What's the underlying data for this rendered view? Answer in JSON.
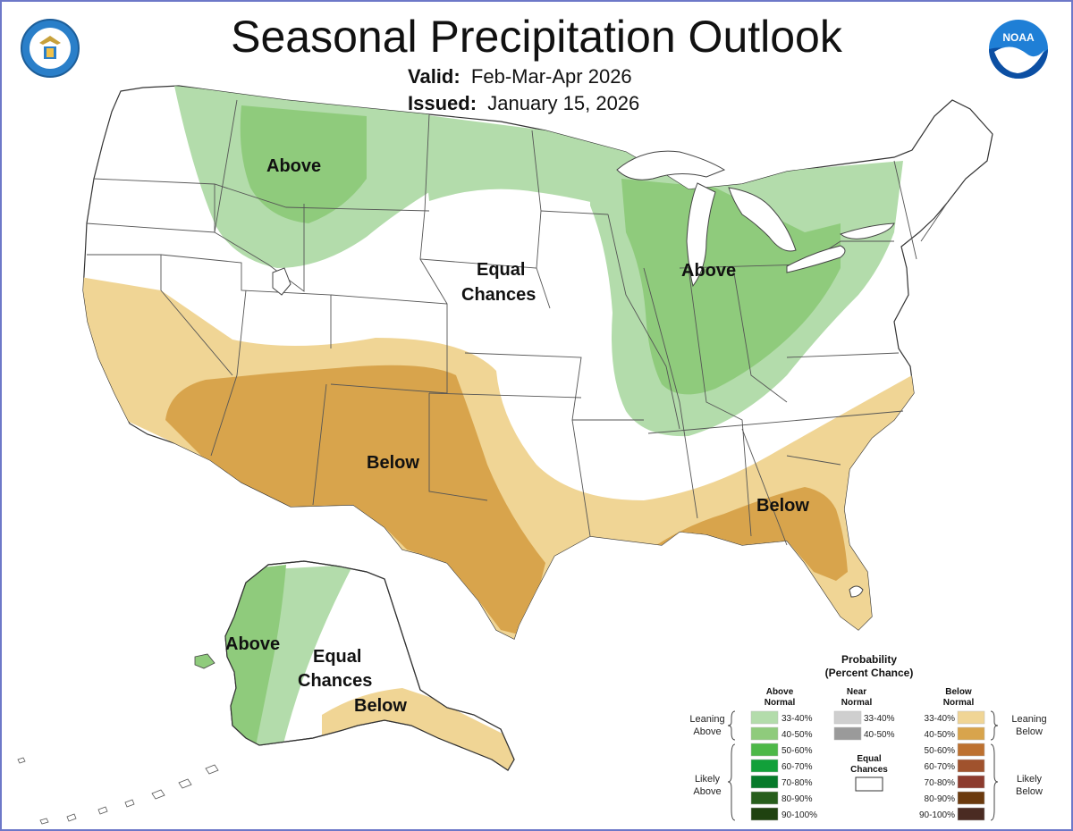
{
  "header": {
    "title": "Seasonal Precipitation Outlook",
    "valid_label": "Valid:",
    "valid_value": "Feb-Mar-Apr 2026",
    "issued_label": "Issued:",
    "issued_value": "January 15, 2026",
    "noaa_logo_text": "NOAA"
  },
  "map_labels": {
    "conus_northwest_above": "Above",
    "conus_central_equal_1": "Equal",
    "conus_central_equal_2": "Chances",
    "conus_east_above": "Above",
    "conus_southwest_below": "Below",
    "conus_southeast_below": "Below",
    "alaska_above": "Above",
    "alaska_equal_1": "Equal",
    "alaska_equal_2": "Chances",
    "alaska_below": "Below"
  },
  "legend": {
    "title_1": "Probability",
    "title_2": "(Percent Chance)",
    "above_header_1": "Above",
    "above_header_2": "Normal",
    "near_header_1": "Near",
    "near_header_2": "Normal",
    "below_header_1": "Below",
    "below_header_2": "Normal",
    "leaning_above_1": "Leaning",
    "leaning_above_2": "Above",
    "likely_above_1": "Likely",
    "likely_above_2": "Above",
    "leaning_below_1": "Leaning",
    "leaning_below_2": "Below",
    "likely_below_1": "Likely",
    "likely_below_2": "Below",
    "equal_1": "Equal",
    "equal_2": "Chances",
    "above_ranges": [
      "33-40%",
      "40-50%",
      "50-60%",
      "60-70%",
      "70-80%",
      "80-90%",
      "90-100%"
    ],
    "near_ranges": [
      "33-40%",
      "40-50%"
    ],
    "below_ranges": [
      "33-40%",
      "40-50%",
      "50-60%",
      "60-70%",
      "70-80%",
      "80-90%",
      "90-100%"
    ],
    "above_colors": [
      "#b3dcab",
      "#8fcb7c",
      "#4db848",
      "#12a03a",
      "#077a2a",
      "#275e1c",
      "#1f4210"
    ],
    "near_colors": [
      "#cfcfcf",
      "#9a9a9a"
    ],
    "below_colors": [
      "#f0d595",
      "#d8a44c",
      "#bd7130",
      "#a0522d",
      "#8c3b2e",
      "#6b3a0e",
      "#4a2b22"
    ],
    "equal_color": "#ffffff"
  },
  "colors": {
    "above_33_40": "#b3dcab",
    "above_40_50": "#8fcb7c",
    "below_33_40": "#f0d595",
    "below_40_50": "#d8a44c",
    "frame": "#6d78c8"
  }
}
